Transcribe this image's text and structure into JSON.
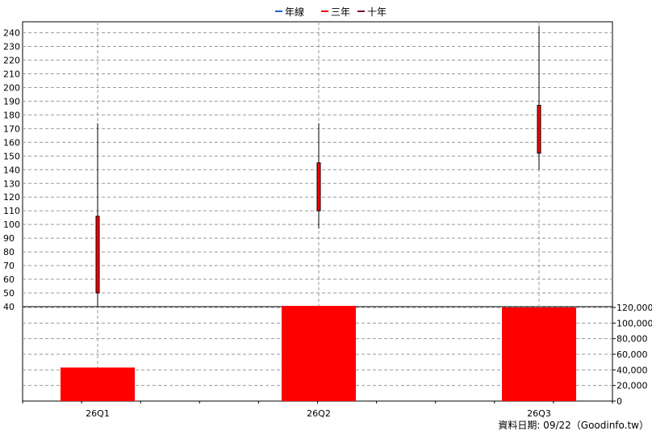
{
  "chart_data": {
    "type": "candlestick",
    "categories": [
      "26Q1",
      "26Q2",
      "26Q3"
    ],
    "price": {
      "open": [
        50,
        110,
        152
      ],
      "close": [
        106,
        145,
        187
      ],
      "high": [
        174,
        174,
        245
      ],
      "low": [
        40,
        97,
        140
      ],
      "ylim": [
        40,
        248
      ],
      "ticks": [
        40,
        50,
        60,
        70,
        80,
        90,
        100,
        110,
        120,
        130,
        140,
        150,
        160,
        170,
        180,
        190,
        200,
        210,
        220,
        230,
        240
      ]
    },
    "volume": {
      "values": [
        43000,
        122000,
        120000
      ],
      "ylim": [
        0,
        120000
      ],
      "ticks": [
        0,
        20000,
        40000,
        60000,
        80000,
        100000,
        120000
      ],
      "tick_labels": [
        "0",
        "20,000",
        "40,000",
        "60,000",
        "80,000",
        "100,000",
        "120,000"
      ]
    },
    "legend": [
      {
        "name": "年線",
        "color": "#1f5fd1"
      },
      {
        "name": "三年",
        "color": "#ff0000"
      },
      {
        "name": "十年",
        "color": "#7a0a2a"
      }
    ],
    "legend_position": "top-center",
    "grid": true,
    "colors": {
      "candle_body": "#ff0000",
      "volume_bar": "#ff0000",
      "wick": "#000000"
    },
    "footer": "資料日期: 09/22（Goodinfo.tw）"
  }
}
